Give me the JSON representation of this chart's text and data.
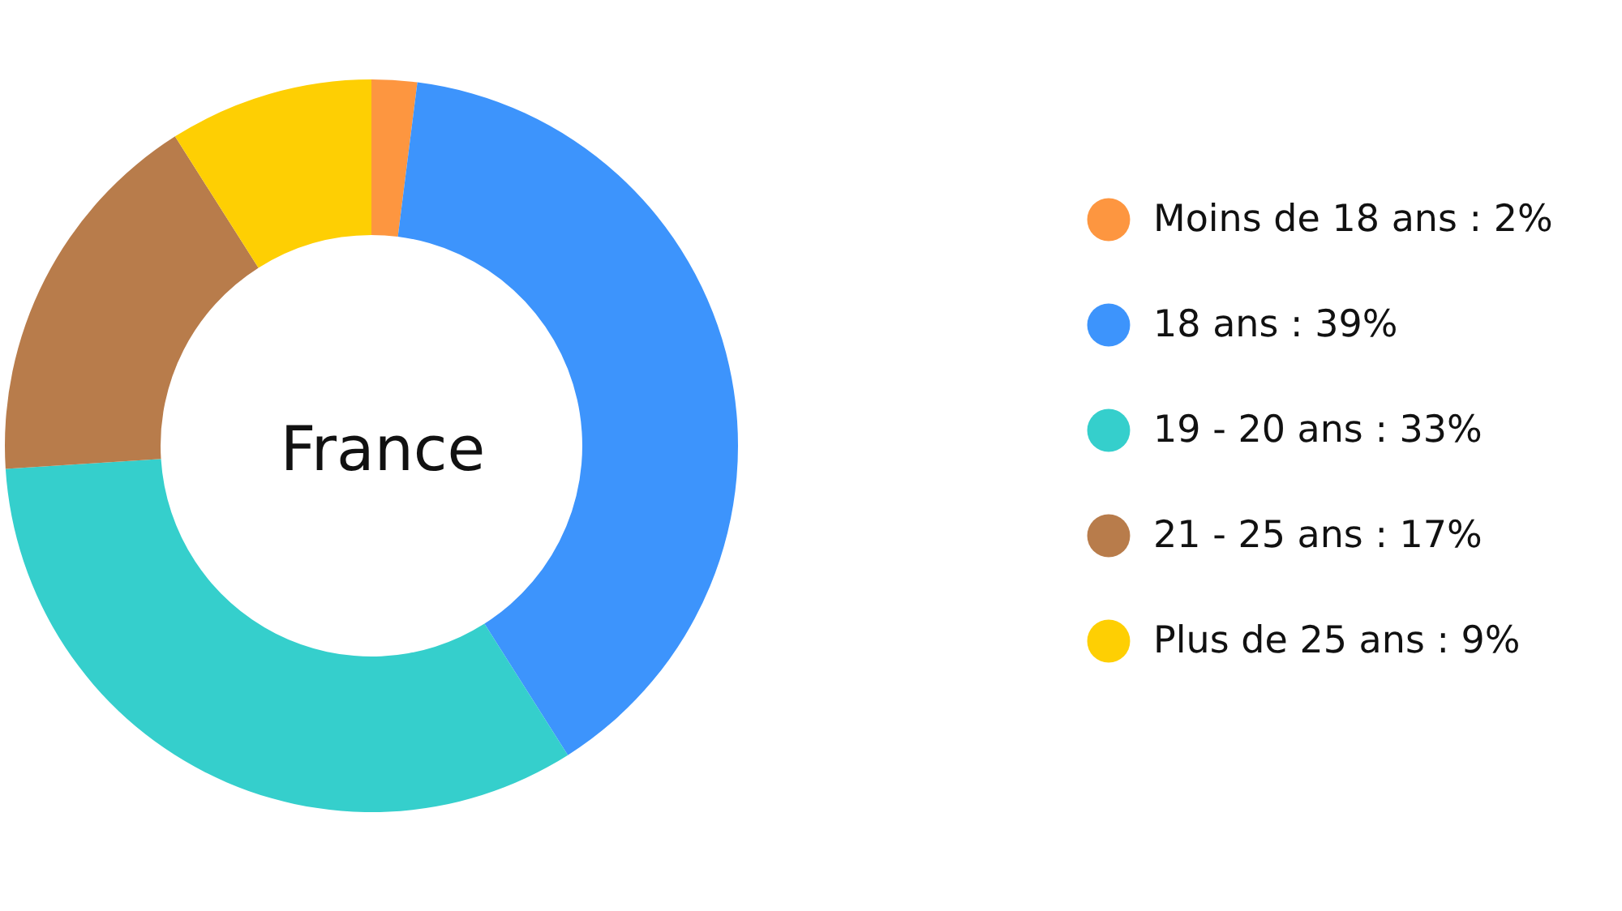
{
  "chart_data": {
    "type": "donut",
    "title": "France",
    "categories": [
      "Moins de 18 ans : 2%",
      "18 ans : 39%",
      "19 - 20 ans : 33%",
      "21 - 25 ans : 17%",
      "Plus de 25 ans : 9%"
    ],
    "values": [
      2,
      39,
      33,
      17,
      9
    ],
    "colors": [
      "#fd9640",
      "#3d94fc",
      "#35cfcc",
      "#b87c4b",
      "#fecf03"
    ],
    "legend": "right"
  }
}
